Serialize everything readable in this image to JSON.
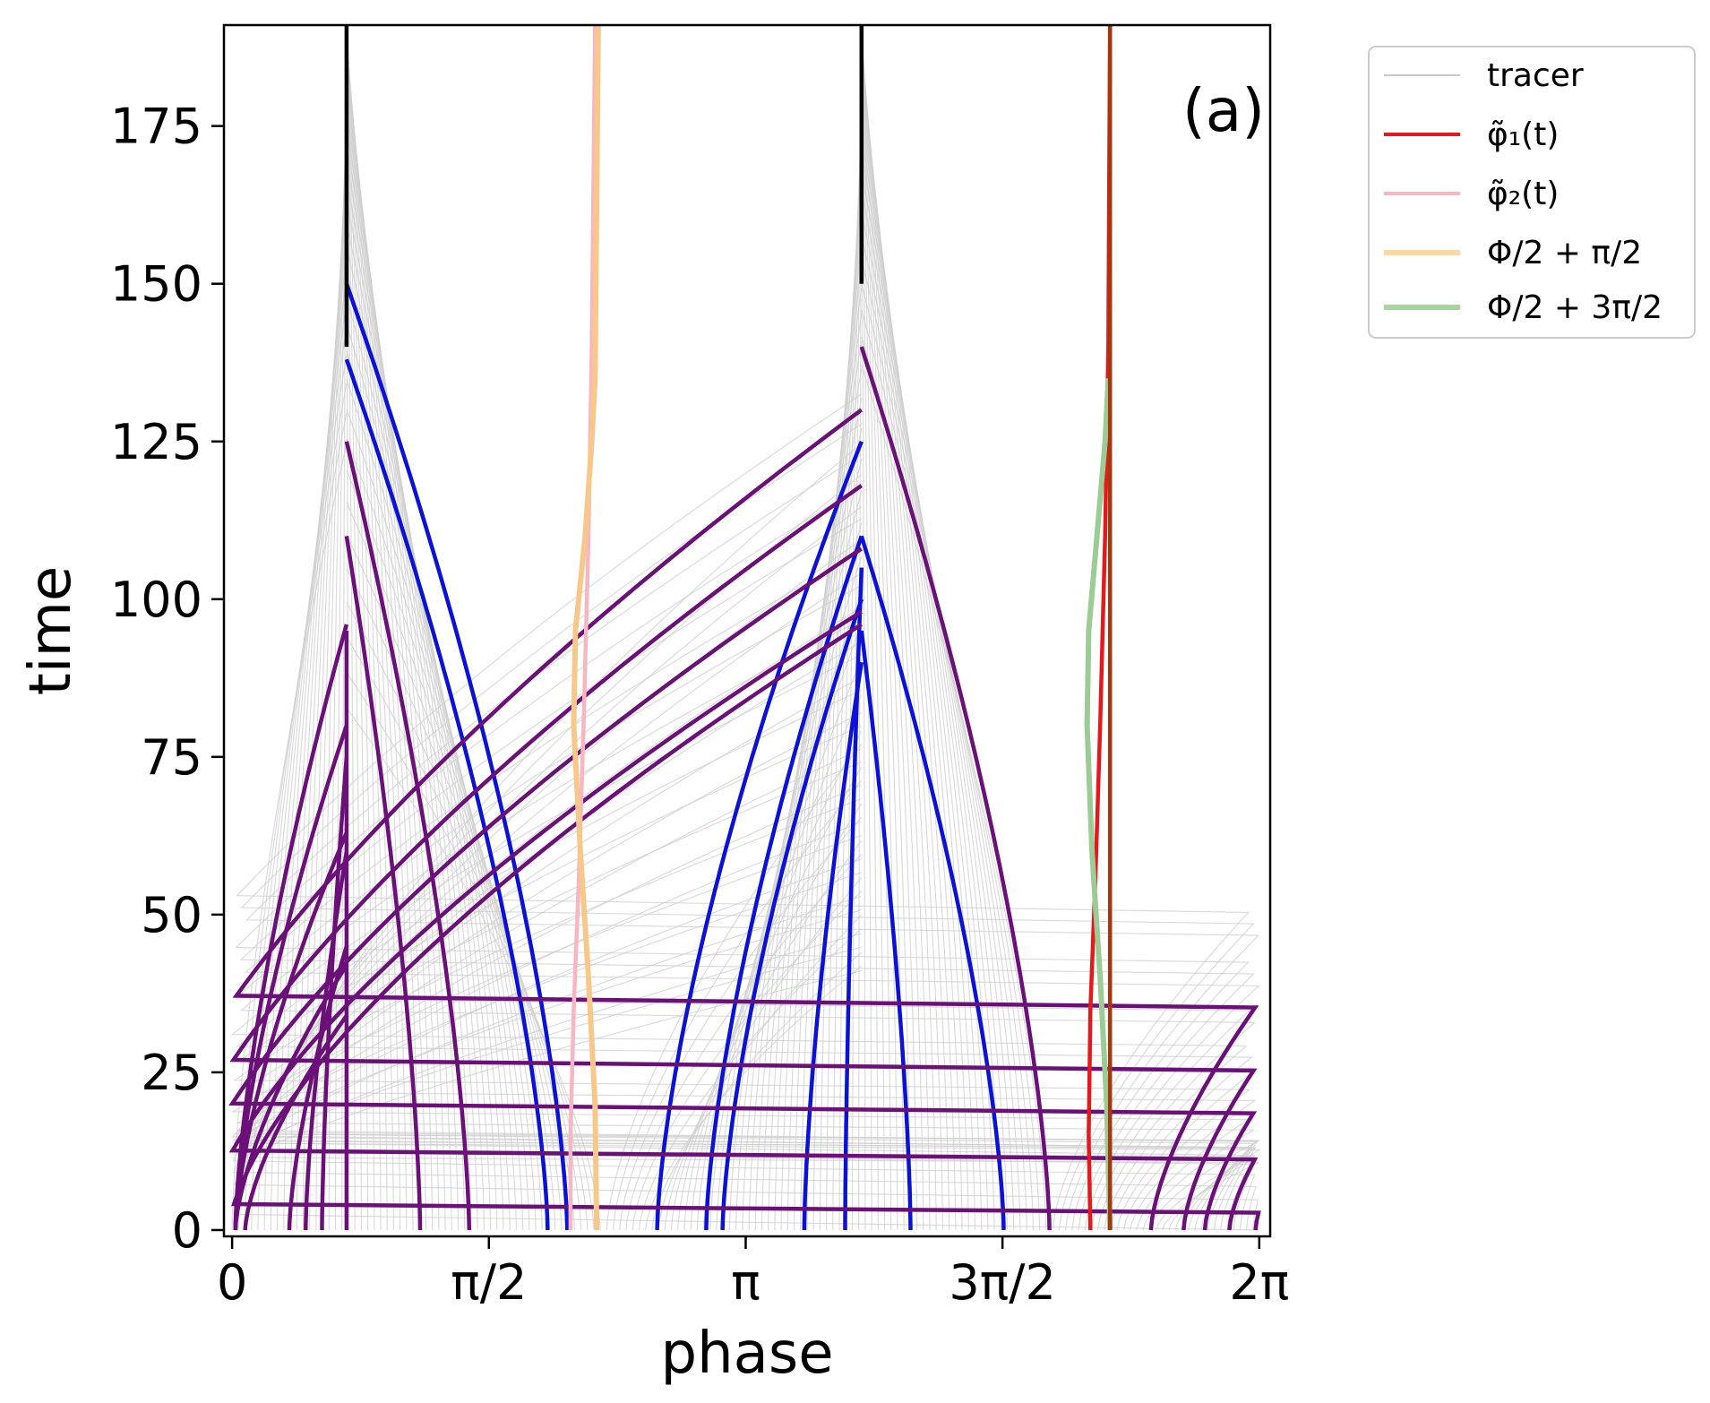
{
  "chart_data": {
    "type": "line",
    "panel_label": "(a)",
    "xlabel": "phase",
    "ylabel": "time",
    "xlim": [
      -0.05,
      6.35
    ],
    "ylim": [
      -1,
      191
    ],
    "x_ticks": [
      {
        "value": 0,
        "label": "0"
      },
      {
        "value": 1.5708,
        "label": "π/2"
      },
      {
        "value": 3.1416,
        "label": "π"
      },
      {
        "value": 4.7124,
        "label": "3π/2"
      },
      {
        "value": 6.2832,
        "label": "2π"
      }
    ],
    "y_ticks": [
      0,
      25,
      50,
      75,
      100,
      125,
      150,
      175
    ],
    "legend": {
      "position": "outside-top-right",
      "entries": [
        {
          "label": "tracer",
          "color": "#c8c8c8"
        },
        {
          "label": "φ̃₁(t)",
          "color": "#e31a1c"
        },
        {
          "label": "φ̃₂(t)",
          "color": "#f7b6c2"
        },
        {
          "label": "Φ/2 + π/2",
          "color": "#f8d9a0"
        },
        {
          "label": "Φ/2 + 3π/2",
          "color": "#a9d3a1"
        }
      ]
    },
    "colors": {
      "tracer": "#cfcfcf",
      "purple": "#6b1078",
      "blue": "#0b12d6",
      "black": "#000000",
      "phi1": "#e31a1c",
      "phi2": "#f7b6c2",
      "orange": "#f8c88a",
      "green": "#9dcb95",
      "brown": "#a5370f"
    },
    "attractors": [
      0.7,
      3.85
    ],
    "tracer": {
      "count": 160,
      "x_range": [
        0,
        6.2832
      ]
    },
    "series": [
      {
        "name": "φ̃₁(t)",
        "color_key": "phi1",
        "points": [
          [
            5.25,
            0
          ],
          [
            5.24,
            15
          ],
          [
            5.25,
            35
          ],
          [
            5.28,
            55
          ],
          [
            5.31,
            80
          ],
          [
            5.34,
            110
          ],
          [
            5.36,
            140
          ],
          [
            5.37,
            191
          ]
        ]
      },
      {
        "name": "φ̃₂(t)",
        "color_key": "phi2",
        "points": [
          [
            2.07,
            0
          ],
          [
            2.07,
            15
          ],
          [
            2.09,
            35
          ],
          [
            2.12,
            55
          ],
          [
            2.15,
            80
          ],
          [
            2.18,
            110
          ],
          [
            2.2,
            140
          ],
          [
            2.22,
            191
          ]
        ]
      },
      {
        "name": "Φ/2 + π/2",
        "color_key": "orange",
        "points": [
          [
            2.23,
            0
          ],
          [
            2.22,
            20
          ],
          [
            2.18,
            40
          ],
          [
            2.13,
            60
          ],
          [
            2.09,
            80
          ],
          [
            2.1,
            95
          ],
          [
            2.16,
            110
          ],
          [
            2.2,
            125
          ],
          [
            2.22,
            135
          ],
          [
            2.24,
            191
          ]
        ]
      },
      {
        "name": "Φ/2 + 3π/2",
        "color_key": "green",
        "points": [
          [
            5.37,
            0
          ],
          [
            5.35,
            20
          ],
          [
            5.31,
            40
          ],
          [
            5.26,
            60
          ],
          [
            5.23,
            80
          ],
          [
            5.24,
            95
          ],
          [
            5.29,
            110
          ],
          [
            5.34,
            125
          ],
          [
            5.36,
            135
          ]
        ]
      },
      {
        "name": "brown-core",
        "color_key": "brown",
        "points": [
          [
            5.37,
            0
          ],
          [
            5.37,
            191
          ]
        ]
      },
      {
        "name": "black-core-1",
        "color_key": "black",
        "points": [
          [
            0.7,
            140
          ],
          [
            0.7,
            191
          ]
        ]
      },
      {
        "name": "black-core-2",
        "color_key": "black",
        "points": [
          [
            3.85,
            150
          ],
          [
            3.85,
            191
          ]
        ]
      }
    ],
    "trajectories": [
      {
        "start": 0.02,
        "end_time": 96,
        "color_key": "purple"
      },
      {
        "start": 0.02,
        "end_time": 80,
        "color_key": "purple"
      },
      {
        "start": 0.02,
        "end_time": 63,
        "color_key": "purple"
      },
      {
        "start": 0.02,
        "end_time": 42,
        "color_key": "purple"
      },
      {
        "start": 0.08,
        "end_time": 34,
        "color_key": "purple"
      },
      {
        "start": 0.35,
        "end_time": 45,
        "color_key": "purple"
      },
      {
        "start": 0.45,
        "end_time": 60,
        "color_key": "purple"
      },
      {
        "start": 0.55,
        "end_time": 75,
        "color_key": "purple"
      },
      {
        "start": 0.7,
        "end_time": 95,
        "color_key": "purple"
      },
      {
        "start": 1.15,
        "end_time": 110,
        "color_key": "purple"
      },
      {
        "start": 1.45,
        "end_time": 125,
        "color_key": "purple"
      },
      {
        "start": 1.93,
        "end_time": 138,
        "color_key": "blue"
      },
      {
        "start": 2.05,
        "end_time": 150,
        "color_key": "blue"
      },
      {
        "start": 2.6,
        "end_time": 125,
        "color_key": "blue"
      },
      {
        "start": 2.9,
        "end_time": 110,
        "color_key": "blue"
      },
      {
        "start": 3.0,
        "end_time": 100,
        "color_key": "blue"
      },
      {
        "start": 3.5,
        "end_time": 90,
        "color_key": "blue"
      },
      {
        "start": 3.75,
        "end_time": 105,
        "color_key": "blue"
      },
      {
        "start": 4.15,
        "end_time": 95,
        "color_key": "blue"
      },
      {
        "start": 4.72,
        "end_time": 110,
        "color_key": "blue"
      },
      {
        "start": 5.0,
        "end_time": 140,
        "color_key": "purple"
      },
      {
        "start": 5.62,
        "end_time": 130,
        "color_key": "purple"
      },
      {
        "start": 5.82,
        "end_time": 118,
        "color_key": "purple"
      },
      {
        "start": 5.95,
        "end_time": 108,
        "color_key": "purple"
      },
      {
        "start": 6.1,
        "end_time": 98,
        "color_key": "purple"
      },
      {
        "start": 6.26,
        "end_time": 96,
        "color_key": "purple"
      }
    ]
  }
}
